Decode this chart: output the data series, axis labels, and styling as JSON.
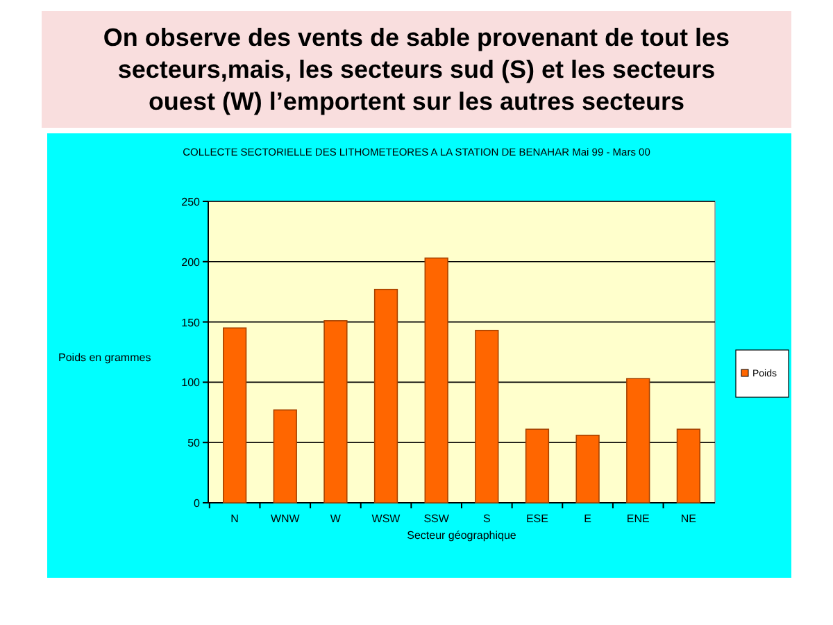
{
  "chart_data": {
    "type": "bar",
    "title": "On observe des vents de sable provenant de tout les secteurs,mais, les secteurs sud (S) et les secteurs ouest (W) l’emportent sur les autres secteurs",
    "subtitle": "COLLECTE SECTORIELLE DES LITHOMETEORES A LA STATION DE BENAHAR  Mai 99 - Mars 00",
    "xlabel": "Secteur géographique",
    "ylabel": "Poids en grammes",
    "categories": [
      "N",
      "WNW",
      "W",
      "WSW",
      "SSW",
      "S",
      "ESE",
      "E",
      "ENE",
      "NE"
    ],
    "series": [
      {
        "name": "Poids",
        "color": "#ff6600",
        "values": [
          145,
          77,
          151,
          177,
          203,
          143,
          61,
          56,
          103,
          61
        ]
      }
    ],
    "ylim": [
      0,
      250
    ],
    "yticks": [
      0,
      50,
      100,
      150,
      200,
      250
    ],
    "grid": "y",
    "legend": "right"
  }
}
